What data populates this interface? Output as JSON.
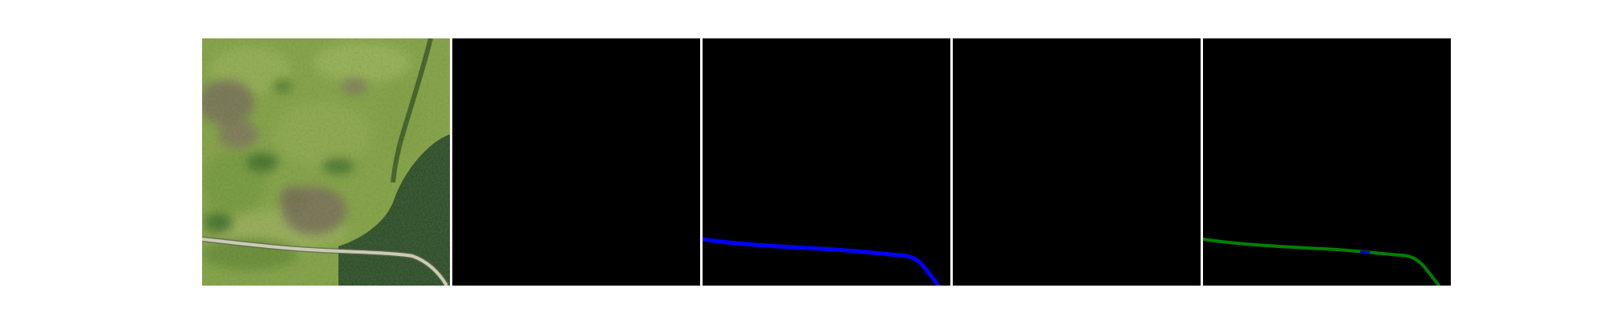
{
  "panels": [
    {
      "id": "satellite",
      "kind": "image"
    },
    {
      "id": "mask-empty-1",
      "kind": "mask"
    },
    {
      "id": "mask-road-blue",
      "kind": "mask",
      "stroke": "#0000ff"
    },
    {
      "id": "mask-empty-2",
      "kind": "mask"
    },
    {
      "id": "mask-road-overlay",
      "kind": "mask",
      "stroke": "#008000",
      "highlight": "#0000cc"
    }
  ],
  "colors": {
    "background": "#ffffff",
    "mask_background": "#000000",
    "grass_light": "#8aa84e",
    "grass_mid": "#7e9c47",
    "grass_dark": "#5f7f3a",
    "brown_patch": "#7f7e5c",
    "forest": "#2c4a24",
    "road": "#c9c6b5",
    "blue_road": "#0000ff",
    "green_road": "#008000",
    "blue_segment": "#0000cc"
  }
}
